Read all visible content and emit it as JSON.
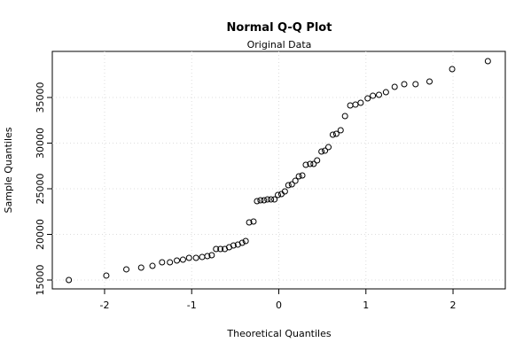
{
  "chart_data": {
    "type": "scatter",
    "title": "Normal Q-Q Plot",
    "subtitle": "Original Data",
    "x_label": "Theoretical Quantiles",
    "y_label": "Sample Quantiles",
    "xlim": [
      -2.6,
      2.6
    ],
    "ylim": [
      14030,
      40050
    ],
    "xticks": [
      -2,
      -1,
      0,
      1,
      2
    ],
    "yticks": [
      15000,
      20000,
      25000,
      30000,
      35000
    ],
    "grid": true,
    "color": "#000000",
    "x": [
      -2.41,
      -1.98,
      -1.75,
      -1.58,
      -1.45,
      -1.34,
      -1.25,
      -1.17,
      -1.1,
      -1.03,
      -0.95,
      -0.88,
      -0.82,
      -0.77,
      -0.72,
      -0.67,
      -0.62,
      -0.57,
      -0.52,
      -0.47,
      -0.42,
      -0.38,
      -0.34,
      -0.29,
      -0.25,
      -0.21,
      -0.17,
      -0.13,
      -0.09,
      -0.05,
      -0.01,
      0.03,
      0.07,
      0.11,
      0.15,
      0.19,
      0.23,
      0.27,
      0.31,
      0.36,
      0.4,
      0.44,
      0.49,
      0.53,
      0.57,
      0.62,
      0.66,
      0.71,
      0.76,
      0.82,
      0.88,
      0.94,
      1.02,
      1.08,
      1.15,
      1.23,
      1.33,
      1.44,
      1.57,
      1.73,
      1.99,
      2.4
    ],
    "values": [
      15000,
      15490,
      16170,
      16360,
      16550,
      16940,
      16940,
      17140,
      17230,
      17430,
      17430,
      17520,
      17620,
      17720,
      18400,
      18400,
      18400,
      18590,
      18790,
      18880,
      19080,
      19270,
      21310,
      21410,
      23640,
      23740,
      23740,
      23830,
      23830,
      23830,
      24320,
      24420,
      24710,
      25390,
      25490,
      25870,
      26360,
      26460,
      27620,
      27720,
      27720,
      28110,
      29080,
      29170,
      29560,
      30920,
      31020,
      31410,
      32960,
      34130,
      34220,
      34420,
      34900,
      35190,
      35290,
      35580,
      36170,
      36460,
      36460,
      36750,
      38110,
      38980
    ]
  }
}
